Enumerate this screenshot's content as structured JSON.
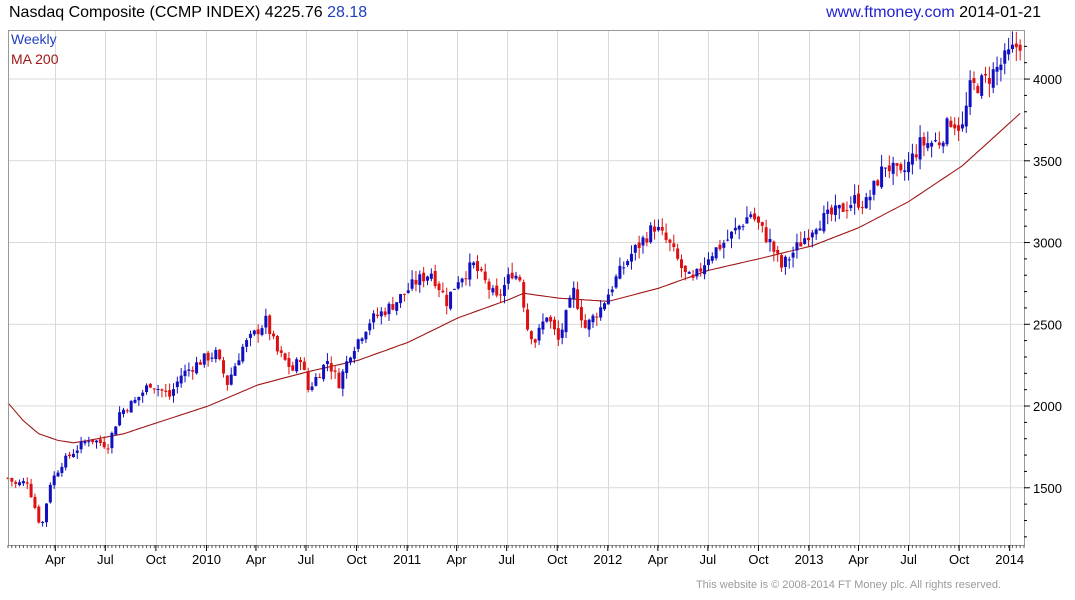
{
  "header": {
    "title": "Nasdaq Composite (CCMP INDEX)",
    "last": "4225.76",
    "change": "28.18",
    "site": "www.ftmoney.com",
    "date": "2014-01-21"
  },
  "footer": {
    "copyright": "This website is © 2008-2014 FT Money plc. All rights reserved."
  },
  "colors": {
    "up": "#1010c0",
    "down": "#dd1111",
    "ma": "#a01818",
    "grid": "#d9d9d9",
    "axis": "#000000"
  },
  "chart_data": {
    "type": "candlestick",
    "legend": [
      {
        "label": "Weekly",
        "color": "#1f3fbf"
      },
      {
        "label": "MA 200",
        "color": "#a01818"
      }
    ],
    "legend_position": "top-left",
    "y_axis_side": "right",
    "ylim": [
      1150,
      4300
    ],
    "y_ticks": [
      1500,
      2000,
      2500,
      3000,
      3500,
      4000
    ],
    "grid": true,
    "x_start": "2009-01-05",
    "x_end": "2014-01-27",
    "x_ticks": [
      {
        "label": "Apr",
        "date": "2009-04-01"
      },
      {
        "label": "Jul",
        "date": "2009-07-01"
      },
      {
        "label": "Oct",
        "date": "2009-10-01"
      },
      {
        "label": "2010",
        "date": "2010-01-01"
      },
      {
        "label": "Apr",
        "date": "2010-04-01"
      },
      {
        "label": "Jul",
        "date": "2010-07-01"
      },
      {
        "label": "Oct",
        "date": "2010-10-01"
      },
      {
        "label": "2011",
        "date": "2011-01-01"
      },
      {
        "label": "Apr",
        "date": "2011-04-01"
      },
      {
        "label": "Jul",
        "date": "2011-07-01"
      },
      {
        "label": "Oct",
        "date": "2011-10-01"
      },
      {
        "label": "2012",
        "date": "2012-01-01"
      },
      {
        "label": "Apr",
        "date": "2012-04-01"
      },
      {
        "label": "Jul",
        "date": "2012-07-01"
      },
      {
        "label": "Oct",
        "date": "2012-10-01"
      },
      {
        "label": "2013",
        "date": "2013-01-01"
      },
      {
        "label": "Apr",
        "date": "2013-04-01"
      },
      {
        "label": "Jul",
        "date": "2013-07-01"
      },
      {
        "label": "Oct",
        "date": "2013-10-01"
      },
      {
        "label": "2014",
        "date": "2014-01-01"
      }
    ],
    "close_anchors": [
      [
        "2009-01-05",
        1560
      ],
      [
        "2009-01-19",
        1520
      ],
      [
        "2009-02-09",
        1540
      ],
      [
        "2009-03-02",
        1300
      ],
      [
        "2009-03-09",
        1290
      ],
      [
        "2009-03-23",
        1530
      ],
      [
        "2009-04-13",
        1650
      ],
      [
        "2009-05-04",
        1720
      ],
      [
        "2009-06-01",
        1800
      ],
      [
        "2009-07-06",
        1760
      ],
      [
        "2009-07-27",
        1960
      ],
      [
        "2009-08-24",
        2030
      ],
      [
        "2009-09-21",
        2140
      ],
      [
        "2009-10-26",
        2060
      ],
      [
        "2009-11-16",
        2190
      ],
      [
        "2009-12-28",
        2290
      ],
      [
        "2010-01-18",
        2320
      ],
      [
        "2010-02-08",
        2140
      ],
      [
        "2010-03-08",
        2360
      ],
      [
        "2010-04-19",
        2520
      ],
      [
        "2010-05-10",
        2330
      ],
      [
        "2010-06-07",
        2220
      ],
      [
        "2010-06-21",
        2300
      ],
      [
        "2010-07-05",
        2100
      ],
      [
        "2010-08-09",
        2280
      ],
      [
        "2010-08-30",
        2140
      ],
      [
        "2010-09-20",
        2330
      ],
      [
        "2010-10-25",
        2520
      ],
      [
        "2010-12-06",
        2620
      ],
      [
        "2011-01-17",
        2760
      ],
      [
        "2011-02-14",
        2820
      ],
      [
        "2011-03-14",
        2640
      ],
      [
        "2011-04-04",
        2780
      ],
      [
        "2011-05-02",
        2860
      ],
      [
        "2011-06-13",
        2650
      ],
      [
        "2011-07-11",
        2820
      ],
      [
        "2011-07-25",
        2780
      ],
      [
        "2011-08-08",
        2480
      ],
      [
        "2011-08-22",
        2400
      ],
      [
        "2011-09-12",
        2560
      ],
      [
        "2011-10-03",
        2400
      ],
      [
        "2011-10-31",
        2700
      ],
      [
        "2011-11-21",
        2480
      ],
      [
        "2011-12-19",
        2600
      ],
      [
        "2012-01-16",
        2780
      ],
      [
        "2012-02-13",
        2930
      ],
      [
        "2012-03-26",
        3100
      ],
      [
        "2012-04-23",
        2980
      ],
      [
        "2012-05-21",
        2800
      ],
      [
        "2012-06-04",
        2760
      ],
      [
        "2012-07-02",
        2920
      ],
      [
        "2012-08-06",
        3020
      ],
      [
        "2012-09-17",
        3180
      ],
      [
        "2012-10-22",
        3000
      ],
      [
        "2012-11-12",
        2850
      ],
      [
        "2012-12-17",
        3000
      ],
      [
        "2013-01-14",
        3120
      ],
      [
        "2013-02-18",
        3180
      ],
      [
        "2013-03-25",
        3260
      ],
      [
        "2013-04-15",
        3240
      ],
      [
        "2013-05-20",
        3480
      ],
      [
        "2013-06-17",
        3400
      ],
      [
        "2013-07-22",
        3600
      ],
      [
        "2013-08-26",
        3620
      ],
      [
        "2013-09-16",
        3750
      ],
      [
        "2013-10-07",
        3700
      ],
      [
        "2013-10-21",
        3940
      ],
      [
        "2013-11-18",
        3990
      ],
      [
        "2013-12-16",
        4090
      ],
      [
        "2014-01-13",
        4200
      ],
      [
        "2014-01-20",
        4225.76
      ]
    ],
    "ma200_anchors": [
      [
        "2009-01-05",
        2020
      ],
      [
        "2009-02-02",
        1910
      ],
      [
        "2009-03-02",
        1830
      ],
      [
        "2009-04-06",
        1790
      ],
      [
        "2009-05-04",
        1775
      ],
      [
        "2009-06-01",
        1790
      ],
      [
        "2009-08-03",
        1830
      ],
      [
        "2009-10-05",
        1900
      ],
      [
        "2010-01-04",
        2000
      ],
      [
        "2010-04-05",
        2130
      ],
      [
        "2010-07-05",
        2210
      ],
      [
        "2010-10-04",
        2280
      ],
      [
        "2011-01-03",
        2390
      ],
      [
        "2011-04-04",
        2540
      ],
      [
        "2011-07-04",
        2650
      ],
      [
        "2011-08-01",
        2690
      ],
      [
        "2011-10-03",
        2660
      ],
      [
        "2012-01-02",
        2640
      ],
      [
        "2012-04-02",
        2720
      ],
      [
        "2012-07-02",
        2830
      ],
      [
        "2012-10-01",
        2900
      ],
      [
        "2013-01-07",
        2980
      ],
      [
        "2013-04-01",
        3090
      ],
      [
        "2013-07-01",
        3250
      ],
      [
        "2013-10-07",
        3470
      ],
      [
        "2014-01-20",
        3790
      ]
    ]
  }
}
